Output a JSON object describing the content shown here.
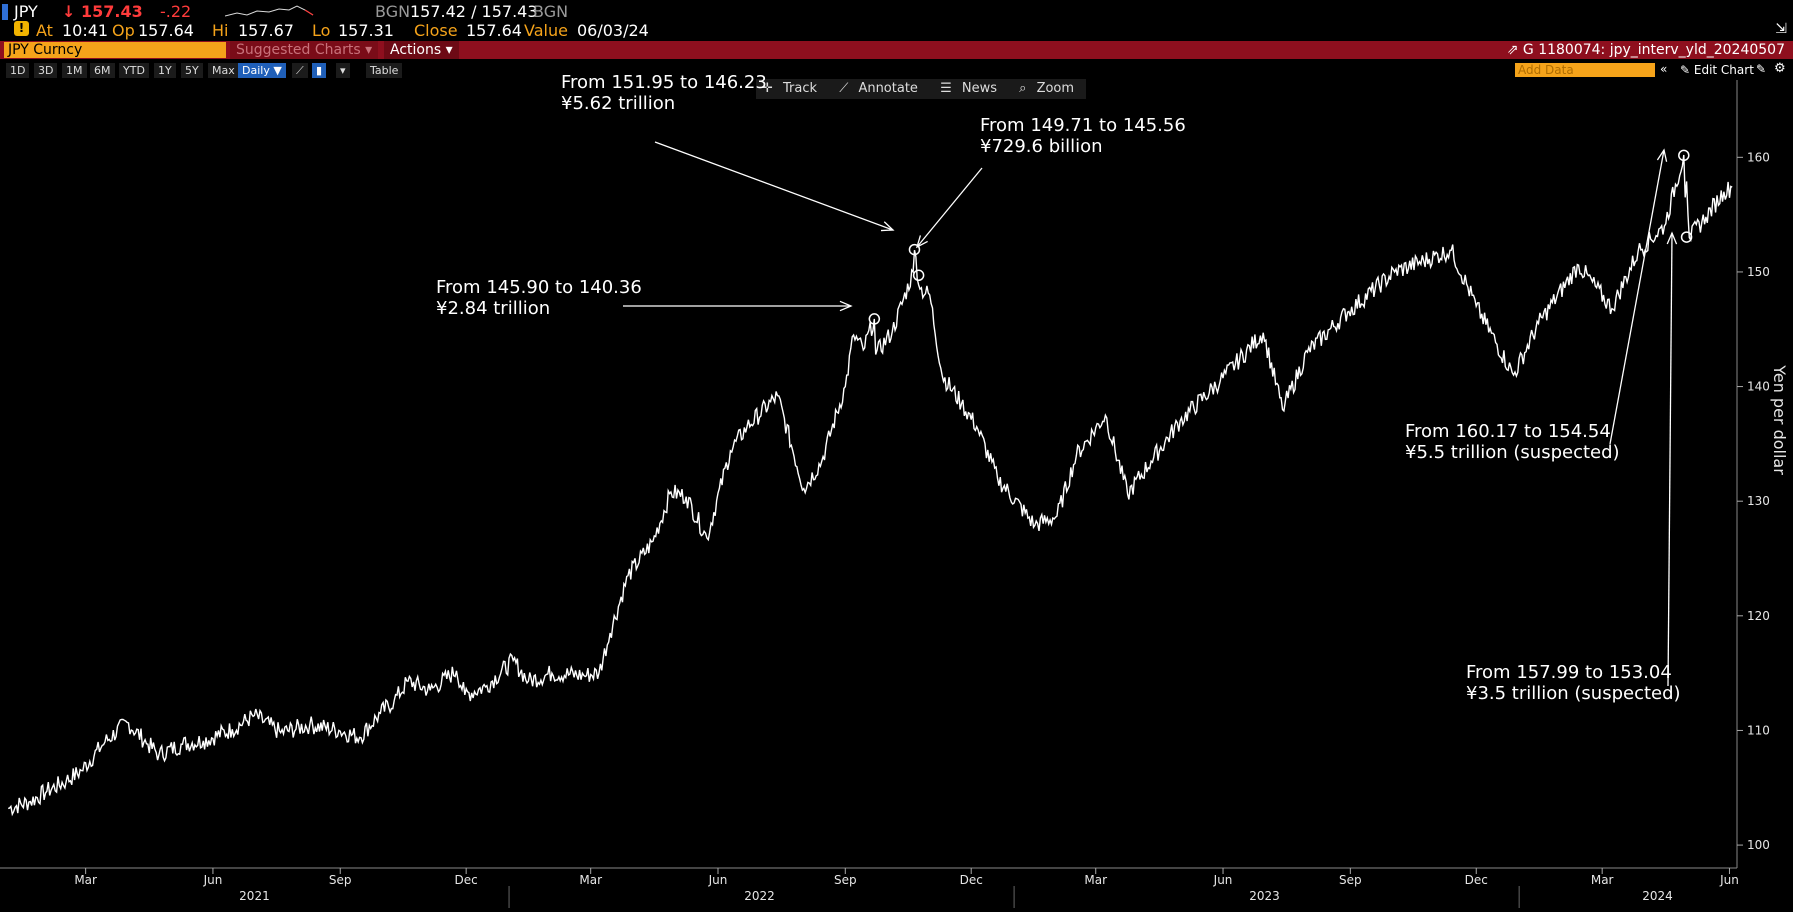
{
  "quote": {
    "ticker": "JPY",
    "last": "↓ 157.43",
    "change": "-.22",
    "source_label": "BGN",
    "bid_ask": "157.42 / 157.43",
    "source_label2": "BGN",
    "at_label": "At",
    "time": "10:41",
    "op_label": "Op",
    "open": "157.64",
    "hi_label": "Hi",
    "high": "157.67",
    "lo_label": "Lo",
    "low": "157.31",
    "close_label": "Close",
    "close": "157.64",
    "value_label": "Value",
    "date": "06/03/24"
  },
  "command_bar": {
    "security": "JPY Curncy",
    "suggested": "Suggested Charts ▾",
    "actions": "Actions ▾",
    "chart_id": "G 1180074: jpy_interv_yld_20240507"
  },
  "toolbar": {
    "ranges": [
      "1D",
      "3D",
      "1M",
      "6M",
      "YTD",
      "1Y",
      "5Y",
      "Max"
    ],
    "frequency": "Daily ▼",
    "table": "Table",
    "add_data_placeholder": "Add Data",
    "edit_chart": "Edit Chart"
  },
  "chart_tools": {
    "track": "Track",
    "annotate": "Annotate",
    "news": "News",
    "zoom": "Zoom"
  },
  "colors": {
    "background": "#000000",
    "series": "#ffffff",
    "command_bar": "#8e0f1e",
    "accent_orange": "#f5a31a",
    "negative": "#ff3b3b"
  },
  "chart_data": {
    "type": "line",
    "ylabel": "Yen per dollar",
    "ylim": [
      98,
      165
    ],
    "y_ticks": [
      100,
      110,
      120,
      130,
      140,
      150,
      160
    ],
    "x_month_labels": [
      "Mar",
      "Jun",
      "Sep",
      "Dec",
      "Mar",
      "Jun",
      "Sep",
      "Dec",
      "Mar",
      "Jun",
      "Sep",
      "Dec",
      "Mar",
      "Jun"
    ],
    "x_month_dates": [
      "2021-03-01",
      "2021-06-01",
      "2021-09-01",
      "2021-12-01",
      "2022-03-01",
      "2022-06-01",
      "2022-09-01",
      "2022-12-01",
      "2023-03-01",
      "2023-06-01",
      "2023-09-01",
      "2023-12-01",
      "2024-03-01",
      "2024-06-01"
    ],
    "x_year_labels": [
      "2021",
      "2022",
      "2023",
      "2024"
    ],
    "x_year_dates": [
      "2021-07-01",
      "2022-07-01",
      "2023-07-01",
      "2024-04-10"
    ],
    "xlim": [
      "2021-01-01",
      "2024-06-05"
    ],
    "series": [
      {
        "values": [
          {
            "x": "2021-01-04",
            "y": 103.2
          },
          {
            "x": "2021-01-20",
            "y": 103.8
          },
          {
            "x": "2021-02-01",
            "y": 104.7
          },
          {
            "x": "2021-02-15",
            "y": 105.6
          },
          {
            "x": "2021-02-26",
            "y": 106.5
          },
          {
            "x": "2021-03-15",
            "y": 109.0
          },
          {
            "x": "2021-03-31",
            "y": 110.7
          },
          {
            "x": "2021-04-15",
            "y": 108.8
          },
          {
            "x": "2021-04-23",
            "y": 107.9
          },
          {
            "x": "2021-05-10",
            "y": 108.8
          },
          {
            "x": "2021-05-25",
            "y": 109.1
          },
          {
            "x": "2021-06-15",
            "y": 110.1
          },
          {
            "x": "2021-07-01",
            "y": 111.3
          },
          {
            "x": "2021-07-20",
            "y": 109.8
          },
          {
            "x": "2021-08-10",
            "y": 110.5
          },
          {
            "x": "2021-08-31",
            "y": 110.0
          },
          {
            "x": "2021-09-15",
            "y": 109.4
          },
          {
            "x": "2021-09-30",
            "y": 111.5
          },
          {
            "x": "2021-10-10",
            "y": 112.6
          },
          {
            "x": "2021-10-20",
            "y": 114.3
          },
          {
            "x": "2021-11-05",
            "y": 113.5
          },
          {
            "x": "2021-11-24",
            "y": 115.2
          },
          {
            "x": "2021-11-30",
            "y": 113.1
          },
          {
            "x": "2021-12-15",
            "y": 113.8
          },
          {
            "x": "2022-01-04",
            "y": 116.1
          },
          {
            "x": "2022-01-15",
            "y": 114.3
          },
          {
            "x": "2022-02-01",
            "y": 115.0
          },
          {
            "x": "2022-02-24",
            "y": 114.8
          },
          {
            "x": "2022-03-07",
            "y": 115.0
          },
          {
            "x": "2022-03-15",
            "y": 118.5
          },
          {
            "x": "2022-03-28",
            "y": 123.5
          },
          {
            "x": "2022-04-15",
            "y": 126.5
          },
          {
            "x": "2022-04-28",
            "y": 130.8
          },
          {
            "x": "2022-05-09",
            "y": 130.4
          },
          {
            "x": "2022-05-24",
            "y": 126.8
          },
          {
            "x": "2022-06-10",
            "y": 134.4
          },
          {
            "x": "2022-06-22",
            "y": 136.5
          },
          {
            "x": "2022-07-14",
            "y": 139.2
          },
          {
            "x": "2022-08-02",
            "y": 131.1
          },
          {
            "x": "2022-08-15",
            "y": 133.5
          },
          {
            "x": "2022-09-01",
            "y": 140.0
          },
          {
            "x": "2022-09-07",
            "y": 144.5
          },
          {
            "x": "2022-09-14",
            "y": 143.2
          },
          {
            "x": "2022-09-22",
            "y": 145.9
          },
          {
            "x": "2022-09-23",
            "y": 142.8
          },
          {
            "x": "2022-10-05",
            "y": 144.8
          },
          {
            "x": "2022-10-20",
            "y": 150.0
          },
          {
            "x": "2022-10-21",
            "y": 151.9
          },
          {
            "x": "2022-10-25",
            "y": 148.5
          },
          {
            "x": "2022-11-01",
            "y": 148.0
          },
          {
            "x": "2022-11-10",
            "y": 141.0
          },
          {
            "x": "2022-11-24",
            "y": 138.5
          },
          {
            "x": "2022-12-05",
            "y": 136.5
          },
          {
            "x": "2022-12-20",
            "y": 132.0
          },
          {
            "x": "2023-01-16",
            "y": 127.9
          },
          {
            "x": "2023-02-01",
            "y": 128.7
          },
          {
            "x": "2023-02-15",
            "y": 134.0
          },
          {
            "x": "2023-03-08",
            "y": 137.5
          },
          {
            "x": "2023-03-24",
            "y": 130.6
          },
          {
            "x": "2023-04-10",
            "y": 133.5
          },
          {
            "x": "2023-05-01",
            "y": 137.0
          },
          {
            "x": "2023-05-30",
            "y": 140.5
          },
          {
            "x": "2023-06-30",
            "y": 144.7
          },
          {
            "x": "2023-07-14",
            "y": 138.0
          },
          {
            "x": "2023-08-01",
            "y": 143.0
          },
          {
            "x": "2023-08-30",
            "y": 146.5
          },
          {
            "x": "2023-10-03",
            "y": 150.0
          },
          {
            "x": "2023-11-13",
            "y": 151.9
          },
          {
            "x": "2023-12-01",
            "y": 147.0
          },
          {
            "x": "2023-12-28",
            "y": 141.0
          },
          {
            "x": "2024-01-15",
            "y": 145.5
          },
          {
            "x": "2024-02-13",
            "y": 150.6
          },
          {
            "x": "2024-03-08",
            "y": 146.8
          },
          {
            "x": "2024-03-27",
            "y": 151.8
          },
          {
            "x": "2024-04-15",
            "y": 154.0
          },
          {
            "x": "2024-04-29",
            "y": 160.2
          },
          {
            "x": "2024-04-30",
            "y": 156.5
          },
          {
            "x": "2024-05-01",
            "y": 157.9
          },
          {
            "x": "2024-05-03",
            "y": 153.0
          },
          {
            "x": "2024-05-15",
            "y": 154.8
          },
          {
            "x": "2024-05-28",
            "y": 157.0
          },
          {
            "x": "2024-06-03",
            "y": 157.4
          }
        ]
      }
    ],
    "annotations": [
      {
        "line1": "From 145.90 to 140.36",
        "line2": "¥2.84 trillion",
        "x": "2022-09-22",
        "y": 145.9
      },
      {
        "line1": "From 151.95 to 146.23",
        "line2": "¥5.62 trillion",
        "x": "2022-10-21",
        "y": 151.95
      },
      {
        "line1": "From 149.71 to 145.56",
        "line2": "¥729.6 billion",
        "x": "2022-10-24",
        "y": 149.71
      },
      {
        "line1": "From 160.17 to 154.54",
        "line2": "¥5.5 trillion (suspected)",
        "x": "2024-04-29",
        "y": 160.17
      },
      {
        "line1": "From 157.99 to 153.04",
        "line2": "¥3.5 trillion (suspected)",
        "x": "2024-05-01",
        "y": 153.04
      }
    ]
  }
}
